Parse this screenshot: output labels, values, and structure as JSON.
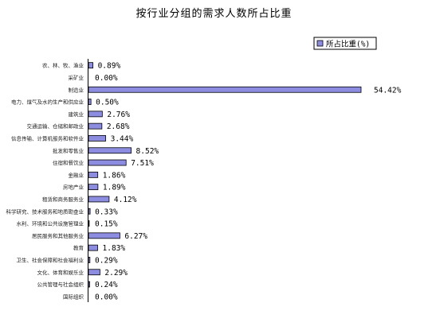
{
  "chart_data": {
    "type": "bar",
    "orientation": "horizontal",
    "title": "按行业分组的需求人数所占比重",
    "legend": {
      "label": "所占比重(%)",
      "position": "top-right"
    },
    "bar_color": "#8c8ce0",
    "categories": [
      "农、林、牧、渔业",
      "采矿业",
      "制造业",
      "电力、煤气及水的生产和供应业",
      "建筑业",
      "交通运输、仓储和邮政业",
      "信息传输、计算机服务和软件业",
      "批发和零售业",
      "住宿和餐饮业",
      "金融业",
      "房地产业",
      "租赁和商务服务业",
      "科学研究、技术服务和地质勘查业",
      "水利、环境和公共设施管理业",
      "居民服务和其他服务业",
      "教育",
      "卫生、社会保障和社会福利业",
      "文化、体育和娱乐业",
      "公共管理与社会组织",
      "国际组织"
    ],
    "values": [
      0.89,
      0.0,
      54.42,
      0.5,
      2.76,
      2.68,
      3.44,
      8.52,
      7.51,
      1.86,
      1.89,
      4.12,
      0.33,
      0.15,
      6.27,
      1.83,
      0.29,
      2.29,
      0.24,
      0.0
    ],
    "value_labels": [
      "0.89%",
      "0.00%",
      "54.42%",
      "0.50%",
      "2.76%",
      "2.68%",
      "3.44%",
      "8.52%",
      "7.51%",
      "1.86%",
      "1.89%",
      "4.12%",
      "0.33%",
      "0.15%",
      "6.27%",
      "1.83%",
      "0.29%",
      "2.29%",
      "0.24%",
      "0.00%"
    ],
    "grid": false
  }
}
